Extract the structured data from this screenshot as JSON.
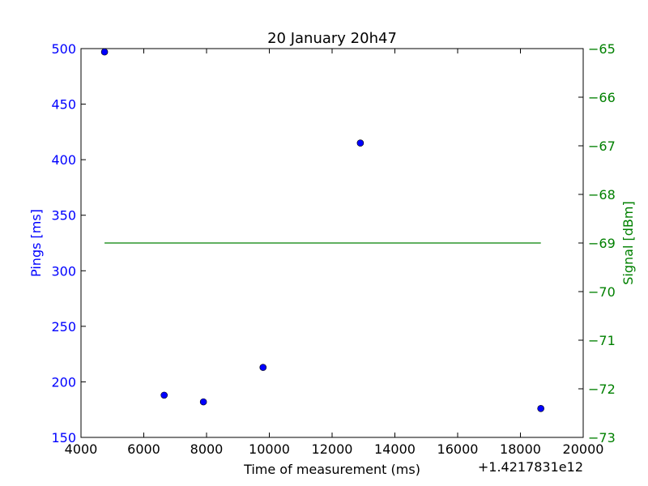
{
  "chart_data": {
    "type": "scatter",
    "title": "20 January 20h47",
    "xlabel": "Time of measurement (ms)",
    "x_offset_label": "+1.4217831e12",
    "xlim": [
      4000,
      20000
    ],
    "x_ticks": [
      "4000",
      "6000",
      "8000",
      "10000",
      "12000",
      "14000",
      "16000",
      "18000",
      "20000"
    ],
    "ylabel_left": "Pings [ms]",
    "ylim_left": [
      150,
      500
    ],
    "y_ticks_left": [
      "150",
      "200",
      "250",
      "300",
      "350",
      "400",
      "450",
      "500"
    ],
    "ylabel_right": "Signal [dBm]",
    "ylim_right": [
      -73,
      -65
    ],
    "y_ticks_right": [
      "−73",
      "−72",
      "−71",
      "−70",
      "−69",
      "−68",
      "−67",
      "−66",
      "−65"
    ],
    "grid": false,
    "series": [
      {
        "axis": "left",
        "kind": "scatter",
        "color": "#0000ff",
        "points": [
          {
            "x": 4750,
            "y": 497
          },
          {
            "x": 6650,
            "y": 188
          },
          {
            "x": 7900,
            "y": 182
          },
          {
            "x": 9800,
            "y": 213
          },
          {
            "x": 12900,
            "y": 415
          },
          {
            "x": 18650,
            "y": 176
          }
        ]
      },
      {
        "axis": "right",
        "kind": "line",
        "color": "#008000",
        "points": [
          {
            "x": 4750,
            "y": -69
          },
          {
            "x": 18650,
            "y": -69
          }
        ]
      }
    ]
  }
}
